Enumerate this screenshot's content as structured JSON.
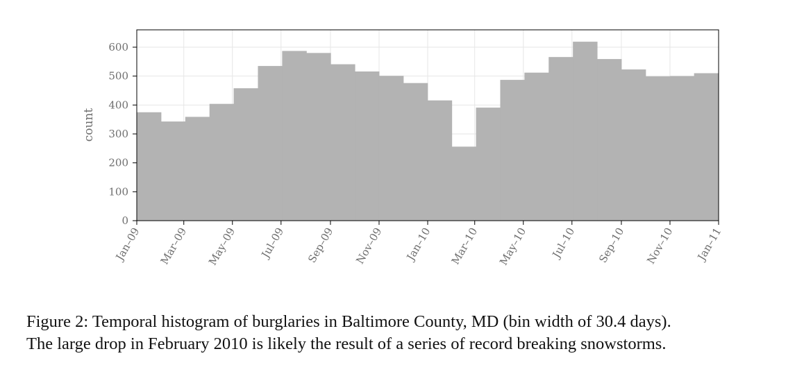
{
  "chart_data": {
    "type": "bar",
    "xlabel": "",
    "ylabel": "count",
    "ylim": [
      0,
      660
    ],
    "yticks": [
      0,
      100,
      200,
      300,
      400,
      500,
      600
    ],
    "x_range": [
      "2009-01-01",
      "2011-01-01"
    ],
    "x_tick_labels": [
      "Jan–09",
      "Mar–09",
      "May–09",
      "Jul–09",
      "Sep–09",
      "Nov–09",
      "Jan–10",
      "Mar–10",
      "May–10",
      "Jul–10",
      "Sep–10",
      "Nov–10",
      "Jan–11"
    ],
    "bin_width_days": 30.4,
    "values": [
      375,
      343,
      359,
      404,
      458,
      535,
      587,
      580,
      541,
      516,
      501,
      476,
      416,
      256,
      391,
      487,
      512,
      566,
      619,
      559,
      523,
      499,
      500,
      510
    ],
    "grid": true,
    "colors": {
      "bar": "#b3b3b3",
      "grid": "#e6e6e6",
      "frame": "#000000"
    }
  },
  "caption": {
    "line1": "Figure 2: Temporal histogram of burglaries in Baltimore County, MD (bin width of 30.4 days).",
    "line2": "The large drop in February 2010 is likely the result of a series of record breaking snowstorms."
  }
}
